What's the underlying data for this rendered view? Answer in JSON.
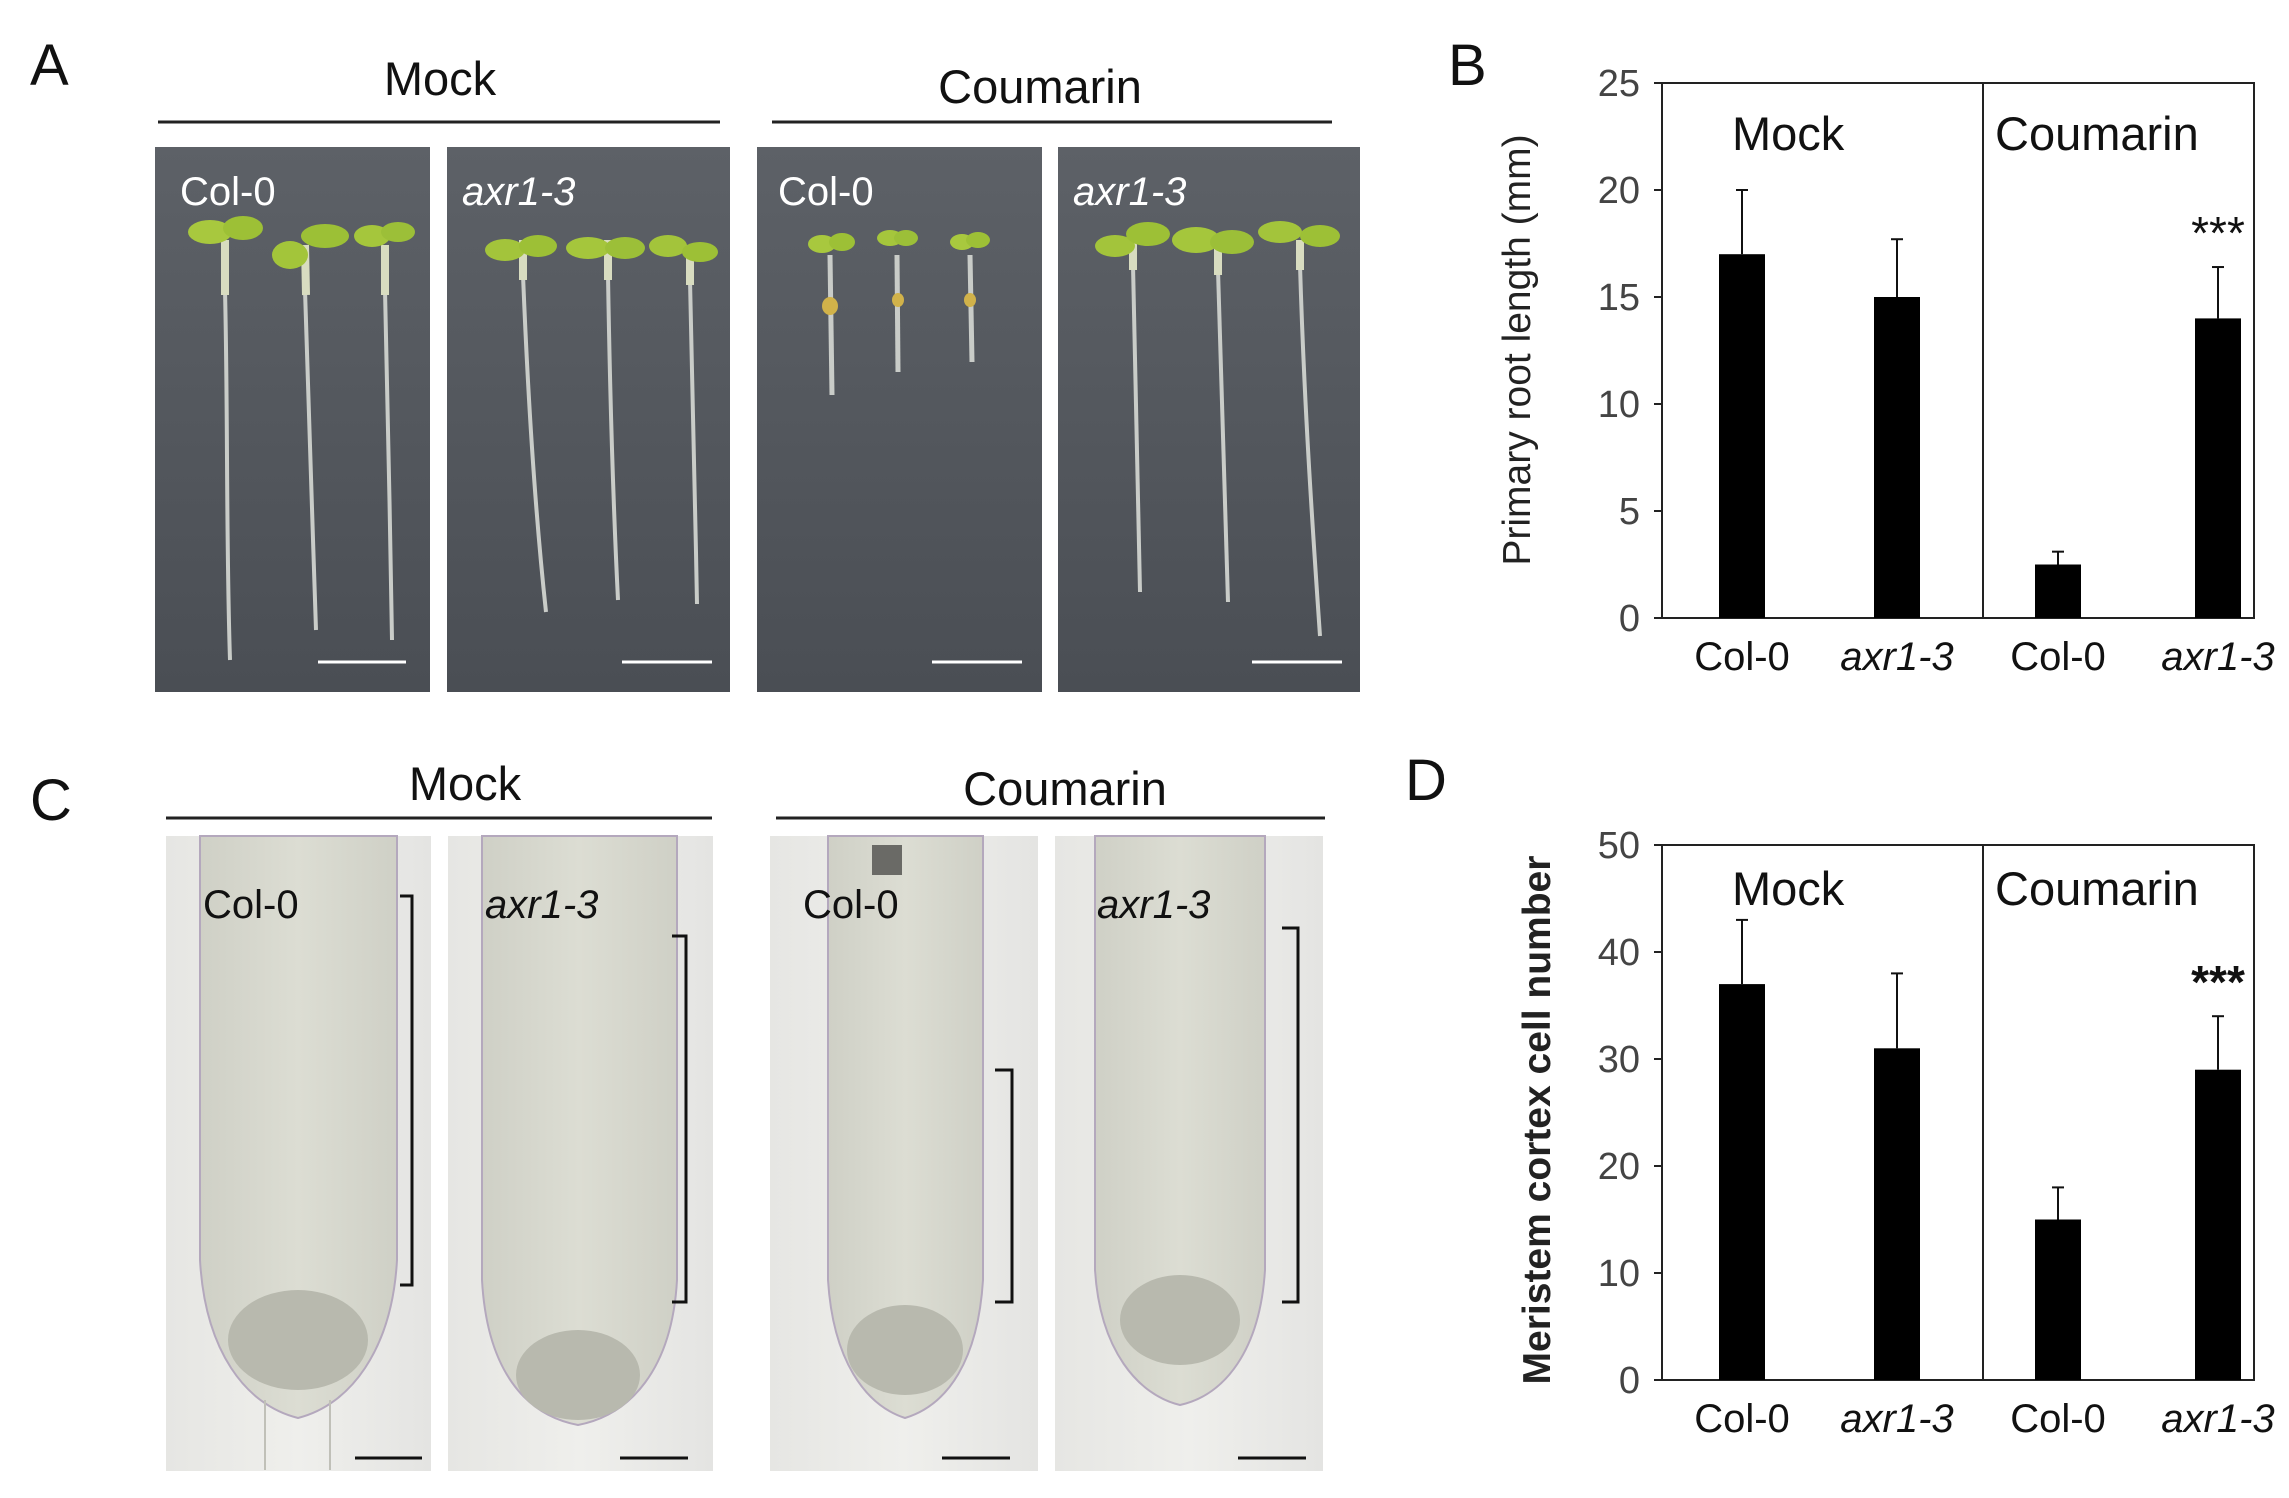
{
  "panels": {
    "A": {
      "letter": "A",
      "groups": [
        "Mock",
        "Coumarin"
      ],
      "photos": [
        {
          "label": "Col-0",
          "italic": false
        },
        {
          "label": "axr1-3",
          "italic": true
        },
        {
          "label": "Col-0",
          "italic": false
        },
        {
          "label": "axr1-3",
          "italic": true
        }
      ]
    },
    "B": {
      "letter": "B"
    },
    "C": {
      "letter": "C",
      "groups": [
        "Mock",
        "Coumarin"
      ],
      "photos": [
        {
          "label": "Col-0",
          "italic": false
        },
        {
          "label": "axr1-3",
          "italic": true
        },
        {
          "label": "Col-0",
          "italic": false
        },
        {
          "label": "axr1-3",
          "italic": true
        }
      ]
    },
    "D": {
      "letter": "D"
    }
  },
  "chart_data": [
    {
      "panel": "B",
      "type": "bar",
      "categories": [
        "Col-0",
        "axr1-3",
        "Col-0",
        "axr1-3"
      ],
      "italic_categories": [
        false,
        true,
        false,
        true
      ],
      "conditions": [
        "Mock",
        "Coumarin"
      ],
      "values": [
        17,
        15,
        2.5,
        14
      ],
      "errors": [
        3,
        2.7,
        0.6,
        2.4
      ],
      "significance": [
        "",
        "",
        "",
        "***"
      ],
      "ylabel": "Primary root length (mm)",
      "ylim": [
        0,
        25
      ],
      "yticks": [
        0,
        5,
        10,
        15,
        20,
        25
      ],
      "bar_color": "#000000"
    },
    {
      "panel": "D",
      "type": "bar",
      "categories": [
        "Col-0",
        "axr1-3",
        "Col-0",
        "axr1-3"
      ],
      "italic_categories": [
        false,
        true,
        false,
        true
      ],
      "conditions": [
        "Mock",
        "Coumarin"
      ],
      "values": [
        37,
        31,
        15,
        29
      ],
      "errors": [
        6,
        7,
        3,
        5
      ],
      "significance": [
        "",
        "",
        "",
        "***"
      ],
      "ylabel": "Meristem cortex cell number",
      "ylim": [
        0,
        50
      ],
      "yticks": [
        0,
        10,
        20,
        30,
        40,
        50
      ],
      "bar_color": "#000000"
    }
  ]
}
